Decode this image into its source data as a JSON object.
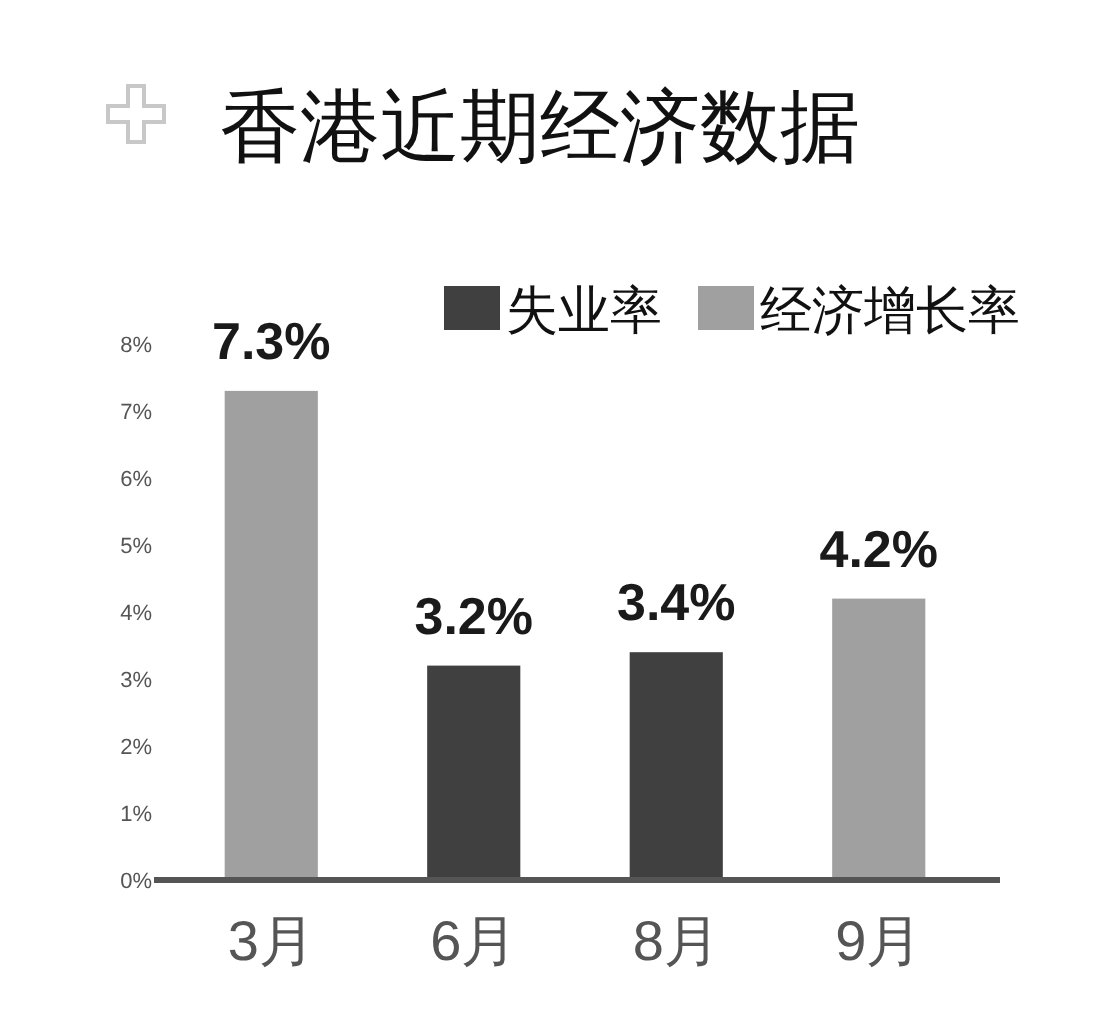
{
  "chart_data": {
    "type": "bar",
    "title": "香港近期经济数据",
    "categories": [
      "3月",
      "6月",
      "8月",
      "9月"
    ],
    "series": [
      {
        "name": "失业率",
        "color": "#404040",
        "values": [
          null,
          3.2,
          3.4,
          null
        ],
        "value_labels": [
          null,
          "3.2%",
          "3.4%",
          null
        ]
      },
      {
        "name": "经济增长率",
        "color": "#a0a0a0",
        "values": [
          7.3,
          null,
          null,
          4.2
        ],
        "value_labels": [
          "7.3%",
          null,
          null,
          "4.2%"
        ]
      }
    ],
    "ylim": [
      0,
      8
    ],
    "yticks": [
      {
        "value": 0,
        "label": "0%"
      },
      {
        "value": 1,
        "label": "1%"
      },
      {
        "value": 2,
        "label": "2%"
      },
      {
        "value": 3,
        "label": "3%"
      },
      {
        "value": 4,
        "label": "4%"
      },
      {
        "value": 5,
        "label": "5%"
      },
      {
        "value": 6,
        "label": "6%"
      },
      {
        "value": 7,
        "label": "7%"
      },
      {
        "value": 8,
        "label": "8%"
      }
    ],
    "legend": "top right"
  }
}
